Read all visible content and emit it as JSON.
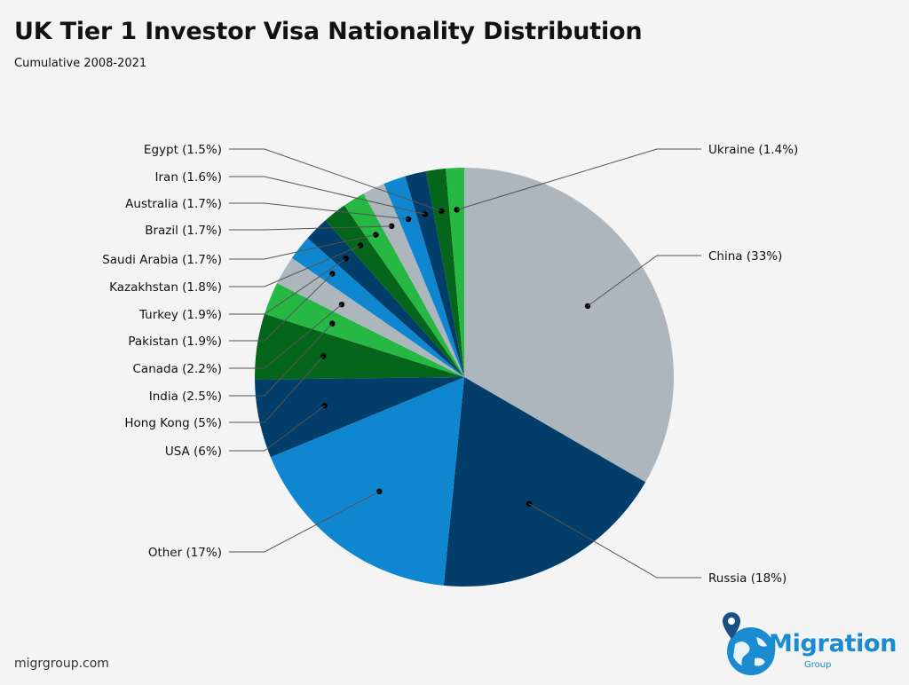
{
  "chart_data": {
    "type": "pie",
    "title": "UK Tier 1 Investor Visa Nationality Distribution",
    "subtitle": "Cumulative 2008-2021",
    "slices": [
      {
        "label": "China (33%)",
        "value": 33,
        "color": "#adb5bd"
      },
      {
        "label": "Russia (18%)",
        "value": 18,
        "color": "#023e69"
      },
      {
        "label": "Other (17%)",
        "value": 17,
        "color": "#0e86d0"
      },
      {
        "label": "USA (6%)",
        "value": 6,
        "color": "#023e69"
      },
      {
        "label": "Hong Kong (5%)",
        "value": 5,
        "color": "#05651a"
      },
      {
        "label": "India (2.5%)",
        "value": 2.5,
        "color": "#26b843"
      },
      {
        "label": "Canada (2.2%)",
        "value": 2.2,
        "color": "#adb5bd"
      },
      {
        "label": "Pakistan (1.9%)",
        "value": 1.9,
        "color": "#0e86d0"
      },
      {
        "label": "Turkey (1.9%)",
        "value": 1.9,
        "color": "#023e69"
      },
      {
        "label": "Kazakhstan (1.8%)",
        "value": 1.8,
        "color": "#05651a"
      },
      {
        "label": "Saudi Arabia (1.7%)",
        "value": 1.7,
        "color": "#26b843"
      },
      {
        "label": "Brazil (1.7%)",
        "value": 1.7,
        "color": "#adb5bd"
      },
      {
        "label": "Australia (1.7%)",
        "value": 1.7,
        "color": "#0e86d0"
      },
      {
        "label": "Iran (1.6%)",
        "value": 1.6,
        "color": "#023e69"
      },
      {
        "label": "Egypt (1.5%)",
        "value": 1.5,
        "color": "#05651a"
      },
      {
        "label": "Ukraine (1.4%)",
        "value": 1.4,
        "color": "#26b843"
      }
    ]
  },
  "source": "migrgroup.com",
  "logo": {
    "name": "Migration",
    "sub": "Group",
    "color": "#1b8bd0"
  }
}
